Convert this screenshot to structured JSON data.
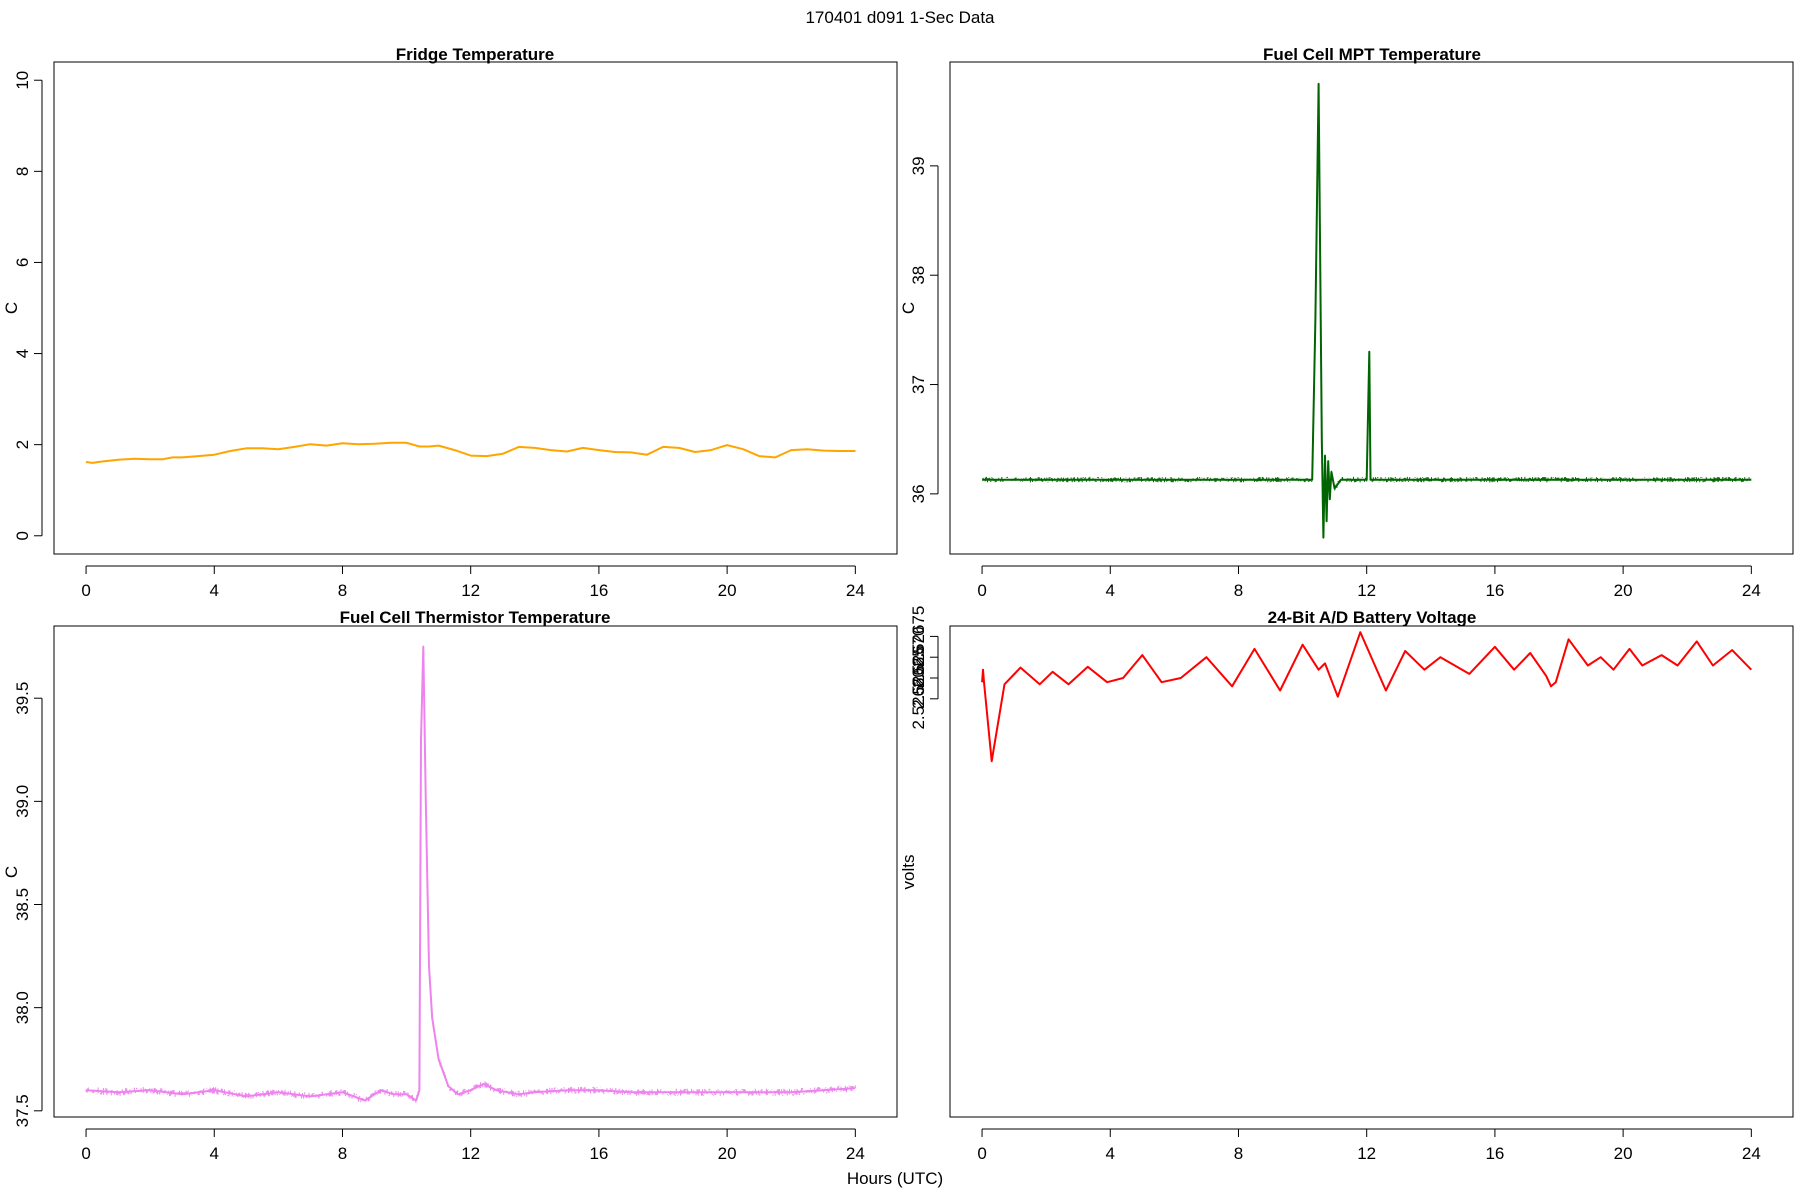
{
  "figure": {
    "title": "170401   d091   1-Sec Data",
    "xlabel": "Hours (UTC)"
  },
  "chart_data": [
    {
      "type": "line",
      "title": "Fridge Temperature",
      "ylabel": "C",
      "color": "#FFA500",
      "noise": 0.035,
      "xlim": [
        -1,
        25.3
      ],
      "ylim": [
        -0.4,
        10.4
      ],
      "xticks": [
        0,
        4,
        8,
        12,
        16,
        20,
        24
      ],
      "yticks": [
        0,
        2,
        4,
        6,
        8,
        10
      ],
      "ytick_labels": [
        "0",
        "2",
        "4",
        "6",
        "8",
        "10"
      ],
      "x": [
        0,
        0.2,
        0.5,
        1,
        1.5,
        2,
        2.4,
        2.7,
        3,
        3.5,
        4,
        4.5,
        5,
        5.5,
        6,
        6.5,
        7,
        7.5,
        8,
        8.5,
        9,
        9.5,
        10,
        10.4,
        10.7,
        11,
        11.5,
        12,
        12.5,
        13,
        13.5,
        14,
        14.5,
        15,
        15.5,
        16,
        16.5,
        17,
        17.5,
        18,
        18.5,
        19,
        19.5,
        20,
        20.5,
        21,
        21.5,
        22,
        22.5,
        23,
        23.5,
        24
      ],
      "y": [
        1.62,
        1.6,
        1.63,
        1.67,
        1.69,
        1.68,
        1.68,
        1.72,
        1.72,
        1.75,
        1.78,
        1.86,
        1.92,
        1.92,
        1.9,
        1.95,
        2.01,
        1.98,
        2.03,
        2.01,
        2.02,
        2.04,
        2.04,
        1.96,
        1.96,
        1.98,
        1.88,
        1.76,
        1.75,
        1.8,
        1.95,
        1.93,
        1.88,
        1.85,
        1.93,
        1.88,
        1.84,
        1.83,
        1.78,
        1.95,
        1.93,
        1.84,
        1.88,
        1.99,
        1.9,
        1.75,
        1.72,
        1.88,
        1.9,
        1.87,
        1.86,
        1.86
      ]
    },
    {
      "type": "line",
      "title": "Fuel Cell MPT Temperature",
      "ylabel": "C",
      "color": "#006400",
      "noise": 0.05,
      "xlim": [
        -1,
        25.3
      ],
      "ylim": [
        35.45,
        39.95
      ],
      "xticks": [
        0,
        4,
        8,
        12,
        16,
        20,
        24
      ],
      "yticks": [
        36,
        37,
        38,
        39
      ],
      "ytick_labels": [
        "36",
        "37",
        "38",
        "39"
      ],
      "x": [
        0,
        2,
        4,
        6,
        8,
        10,
        10.3,
        10.4,
        10.5,
        10.6,
        10.65,
        10.7,
        10.75,
        10.8,
        10.85,
        10.9,
        11.0,
        11.2,
        12.0,
        12.08,
        12.12,
        12.16,
        12.3,
        14,
        16,
        18,
        20,
        22,
        24
      ],
      "y": [
        36.13,
        36.13,
        36.13,
        36.13,
        36.13,
        36.13,
        36.13,
        37.6,
        39.75,
        36.5,
        35.6,
        36.35,
        35.75,
        36.3,
        35.95,
        36.2,
        36.05,
        36.13,
        36.13,
        37.3,
        36.13,
        36.13,
        36.13,
        36.13,
        36.13,
        36.13,
        36.13,
        36.13,
        36.13
      ]
    },
    {
      "type": "line",
      "title": "Fuel Cell Thermistor Temperature",
      "ylabel": "C",
      "color": "#EE82EE",
      "noise": 0.035,
      "xlim": [
        -1,
        25.3
      ],
      "ylim": [
        37.47,
        39.85
      ],
      "xticks": [
        0,
        4,
        8,
        12,
        16,
        20,
        24
      ],
      "yticks": [
        37.5,
        38.0,
        38.5,
        39.0,
        39.5
      ],
      "ytick_labels": [
        "37.5",
        "38.0",
        "38.5",
        "39.0",
        "39.5"
      ],
      "x": [
        0,
        1,
        2,
        3,
        4,
        5,
        6,
        7,
        8,
        8.7,
        9.2,
        9.6,
        10,
        10.3,
        10.4,
        10.45,
        10.52,
        10.6,
        10.7,
        10.8,
        11,
        11.3,
        11.6,
        12,
        12.4,
        12.8,
        13.5,
        14,
        15,
        16,
        17,
        18,
        19,
        20,
        21,
        22,
        23,
        24
      ],
      "y": [
        37.6,
        37.59,
        37.6,
        37.58,
        37.6,
        37.57,
        37.59,
        37.57,
        37.59,
        37.55,
        37.6,
        37.58,
        37.58,
        37.55,
        37.6,
        39.3,
        39.75,
        39.0,
        38.2,
        37.95,
        37.75,
        37.62,
        37.58,
        37.6,
        37.63,
        37.6,
        37.58,
        37.59,
        37.6,
        37.6,
        37.59,
        37.59,
        37.59,
        37.59,
        37.59,
        37.59,
        37.6,
        37.61
      ]
    },
    {
      "type": "line",
      "title": "24-Bit A/D Battery Voltage",
      "ylabel": "volts",
      "color": "#FF0000",
      "noise": 3e-06,
      "xlim": [
        -1,
        25.3
      ],
      "ylim": [
        2.525595,
        2.526775
      ],
      "xticks": [
        0,
        4,
        8,
        12,
        16,
        20,
        24
      ],
      "yticks": [
        2.5266,
        2.52665,
        2.5267,
        2.52675
      ],
      "ytick_labels": [
        "2.52660",
        "2.52665",
        "2.52670",
        "2.52675"
      ],
      "x": [
        0,
        0.03,
        0.06,
        0.3,
        0.7,
        1.2,
        1.8,
        2.2,
        2.7,
        3.3,
        3.9,
        4.4,
        5.0,
        5.6,
        6.2,
        7.0,
        7.8,
        8.5,
        9.3,
        10.0,
        10.5,
        10.7,
        11.1,
        11.8,
        12.6,
        13.2,
        13.8,
        14.3,
        15.2,
        16.0,
        16.6,
        17.1,
        17.6,
        17.75,
        17.9,
        18.3,
        18.9,
        19.3,
        19.7,
        20.2,
        20.6,
        21.2,
        21.7,
        22.3,
        22.8,
        23.4,
        24.0
      ],
      "y": [
        2.52664,
        2.52667,
        2.52664,
        2.52645,
        2.526635,
        2.526675,
        2.526635,
        2.526665,
        2.526635,
        2.526677,
        2.52664,
        2.52665,
        2.526705,
        2.52664,
        2.52665,
        2.5267,
        2.52663,
        2.52672,
        2.52662,
        2.52673,
        2.52667,
        2.526685,
        2.526605,
        2.52676,
        2.52662,
        2.526715,
        2.52667,
        2.5267,
        2.52666,
        2.526725,
        2.52667,
        2.52671,
        2.526655,
        2.52663,
        2.52664,
        2.526743,
        2.52668,
        2.5267,
        2.52667,
        2.52672,
        2.52668,
        2.526705,
        2.52668,
        2.526738,
        2.52668,
        2.526717,
        2.52667
      ]
    }
  ]
}
